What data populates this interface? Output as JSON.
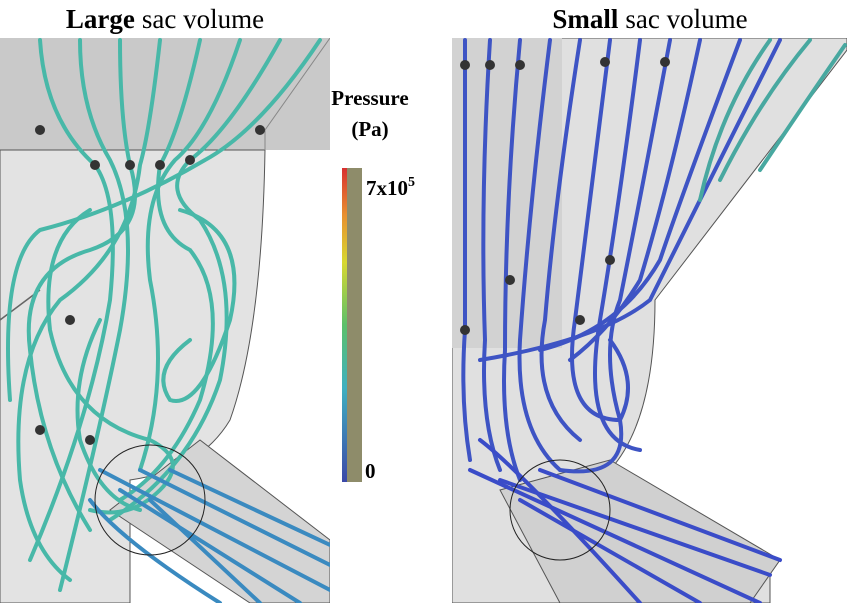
{
  "left_panel": {
    "title_bold": "Large",
    "title_rest": "sac volume"
  },
  "right_panel": {
    "title_bold": "Small",
    "title_rest": "sac volume"
  },
  "colorbar": {
    "title": "Pressure",
    "unit": "(Pa)",
    "max_label": {
      "base": "7x10",
      "exponent": "5"
    },
    "min_label": "0"
  }
}
